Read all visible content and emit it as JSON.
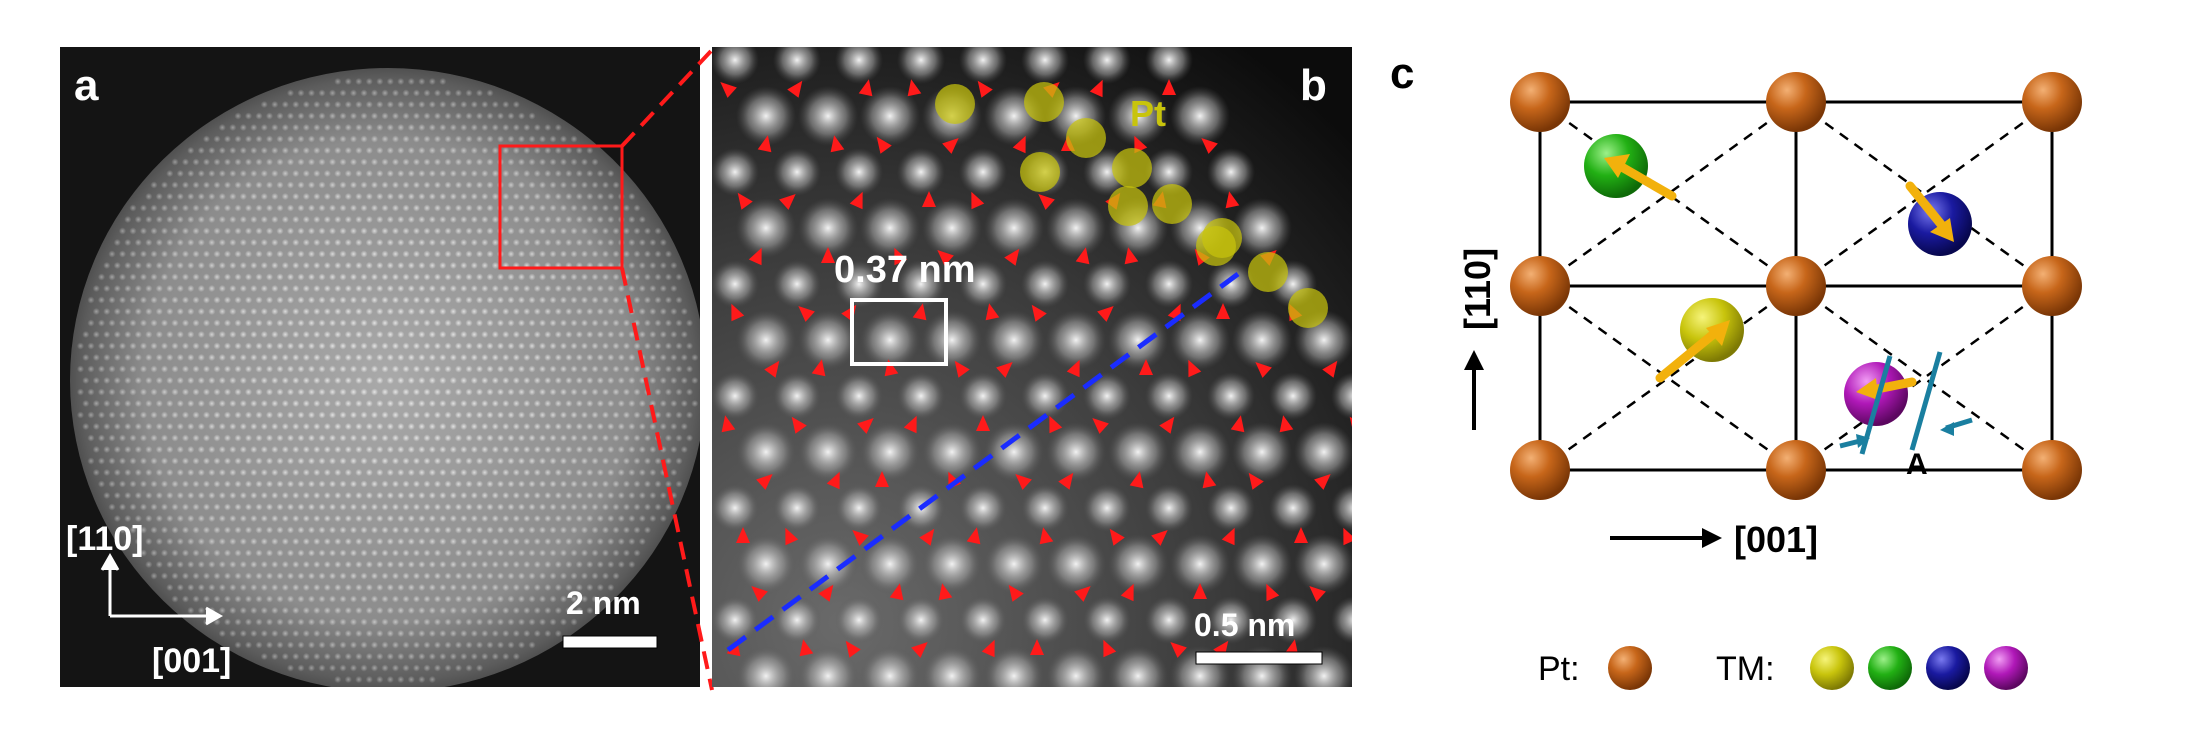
{
  "figure": {
    "panel_a": {
      "label": "a",
      "scale_text": "2 nm",
      "axis_vertical": "[110]",
      "axis_horizontal": "[001]"
    },
    "panel_b": {
      "label": "b",
      "pt_label": "Pt",
      "cell_label": "0.37 nm",
      "scale_text": "0.5 nm"
    },
    "panel_c": {
      "label": "c",
      "axis_vertical": "[110]",
      "axis_horizontal": "[001]",
      "delta_symbol": "A",
      "legend_pt": "Pt:",
      "legend_tm": "TM:"
    },
    "colors": {
      "pt": "#c0650e",
      "tm_yellow": "#c8c40c",
      "tm_green": "#22b014",
      "tm_blue": "#1a1aa0",
      "tm_magenta": "#b018b8",
      "arrow_orange": "#f2b10c",
      "arrow_red": "#ff1a1a",
      "dash_blue": "#1a2cff",
      "teal": "#1a7fa0"
    }
  }
}
